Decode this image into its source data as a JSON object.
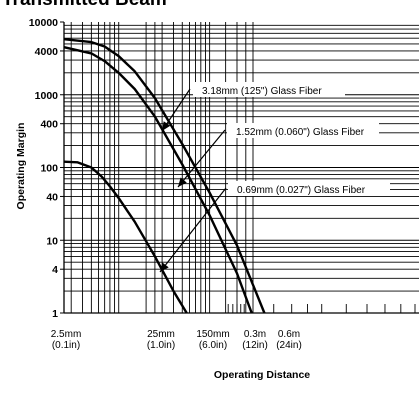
{
  "chart_data": {
    "type": "line",
    "title": "Transmitted Beam",
    "xlabel": "Operating Distance",
    "ylabel": "Operating Margin",
    "x_scale": "log",
    "y_scale": "log",
    "xlim": [
      2.5,
      1000
    ],
    "ylim": [
      1,
      10000
    ],
    "y_ticks": [
      {
        "value": 10000,
        "label": "10000"
      },
      {
        "value": 4000,
        "label": "4000"
      },
      {
        "value": 1000,
        "label": "1000"
      },
      {
        "value": 400,
        "label": "400"
      },
      {
        "value": 100,
        "label": "100"
      },
      {
        "value": 40,
        "label": "40"
      },
      {
        "value": 10,
        "label": "10"
      },
      {
        "value": 4,
        "label": "4"
      },
      {
        "value": 1,
        "label": "1"
      }
    ],
    "x_ticks": [
      {
        "value": 2.5,
        "label": "2.5mm",
        "sub": "(0.1in)"
      },
      {
        "value": 25,
        "label": "25mm",
        "sub": "(1.0in)"
      },
      {
        "value": 150,
        "label": "150mm",
        "sub": "(6.0in)"
      },
      {
        "value": 300,
        "label": "0.3m",
        "sub": "(12in)"
      },
      {
        "value": 600,
        "label": "0.6m",
        "sub": "(24in)"
      }
    ],
    "grid": true,
    "series": [
      {
        "name": "3.18mm (125\") Glass Fiber",
        "x": [
          2.5,
          5,
          7,
          10,
          15,
          25,
          50,
          100,
          200,
          400
        ],
        "y": [
          5800,
          5300,
          4600,
          3400,
          2100,
          900,
          210,
          45,
          8.5,
          1
        ]
      },
      {
        "name": "1.52mm (0.060\") Glass Fiber",
        "x": [
          2.5,
          5,
          7,
          10,
          15,
          25,
          50,
          100,
          200,
          290
        ],
        "y": [
          4500,
          3700,
          2900,
          2000,
          1200,
          500,
          110,
          22,
          3.5,
          1
        ]
      },
      {
        "name": "0.69mm (0.027\") Glass Fiber",
        "x": [
          2.5,
          3.5,
          5,
          6.5,
          8,
          10,
          15,
          25,
          40,
          56
        ],
        "y": [
          120,
          118,
          100,
          75,
          55,
          38,
          18,
          6,
          2,
          1
        ]
      }
    ]
  }
}
